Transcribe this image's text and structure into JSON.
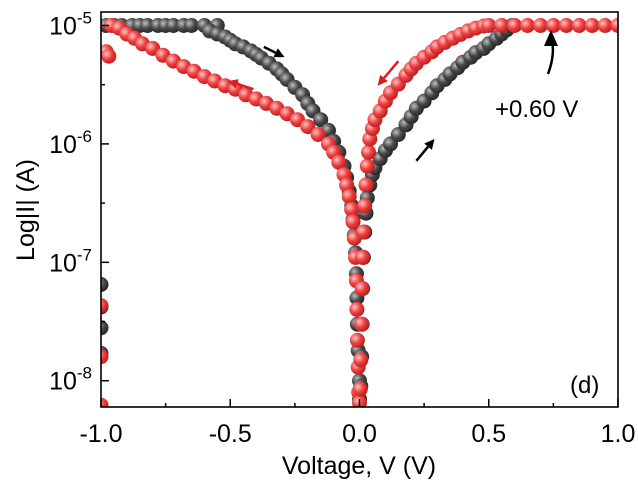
{
  "chart_data": {
    "type": "scatter",
    "title": "",
    "xlabel": "Voltage, V (V)",
    "ylabel": "Log|I| (A)",
    "xscale": "linear",
    "yscale": "log",
    "xlim": [
      -1.0,
      1.0
    ],
    "ylim": [
      6e-09,
      1.3e-05
    ],
    "x_ticks": [
      -1.0,
      -0.5,
      0.0,
      0.5,
      1.0
    ],
    "x_tick_labels": [
      "-1.0",
      "-0.5",
      "0.0",
      "0.5",
      "1.0"
    ],
    "y_ticks": [
      1e-08,
      1e-07,
      1e-06,
      1e-05
    ],
    "y_tick_labels": [
      {
        "base": "10",
        "exp": "-8"
      },
      {
        "base": "10",
        "exp": "-7"
      },
      {
        "base": "10",
        "exp": "-6"
      },
      {
        "base": "10",
        "exp": "-5"
      }
    ],
    "grid": false,
    "legend": "none",
    "panel_label": "(d)",
    "annotations": [
      {
        "text": "+0.60 V",
        "x": 0.6,
        "y": 1e-05,
        "color": "#000000"
      }
    ],
    "arrows": [
      {
        "color": "#000000",
        "from": [
          -0.37,
          6.6e-06
        ],
        "to": [
          -0.29,
          5.4e-06
        ]
      },
      {
        "color": "#d92020",
        "from": [
          -0.41,
          2.9e-06
        ],
        "to": [
          -0.51,
          3.4e-06
        ]
      },
      {
        "color": "#d92020",
        "from": [
          0.15,
          5e-06
        ],
        "to": [
          0.07,
          3.1e-06
        ]
      },
      {
        "color": "#000000",
        "from": [
          0.22,
          7.2e-07
        ],
        "to": [
          0.29,
          1.1e-06
        ]
      }
    ],
    "series": [
      {
        "color": "#4a4a4a",
        "marker": "sphere",
        "points": [
          [
            -1.0,
            6.5e-08
          ],
          [
            -1.0,
            4.2e-08
          ],
          [
            -1.0,
            2.8e-08
          ],
          [
            -1.0,
            1.7e-08
          ],
          [
            -0.98,
            1e-05
          ],
          [
            -0.95,
            1e-05
          ],
          [
            -0.92,
            1e-05
          ],
          [
            -0.88,
            1e-05
          ],
          [
            -0.85,
            1e-05
          ],
          [
            -0.82,
            1e-05
          ],
          [
            -0.78,
            1e-05
          ],
          [
            -0.75,
            1e-05
          ],
          [
            -0.72,
            1e-05
          ],
          [
            -0.68,
            1e-05
          ],
          [
            -0.65,
            1e-05
          ],
          [
            -0.6,
            1e-05
          ],
          [
            -0.55,
            1e-05
          ],
          [
            -0.58,
            9e-06
          ],
          [
            -0.55,
            8.5e-06
          ],
          [
            -0.52,
            8e-06
          ],
          [
            -0.5,
            7.5e-06
          ],
          [
            -0.48,
            7e-06
          ],
          [
            -0.45,
            6.6e-06
          ],
          [
            -0.42,
            6.1e-06
          ],
          [
            -0.4,
            5.7e-06
          ],
          [
            -0.38,
            5.3e-06
          ],
          [
            -0.35,
            4.8e-06
          ],
          [
            -0.32,
            4.3e-06
          ],
          [
            -0.3,
            3.9e-06
          ],
          [
            -0.28,
            3.5e-06
          ],
          [
            -0.25,
            3e-06
          ],
          [
            -0.22,
            2.6e-06
          ],
          [
            -0.2,
            2.2e-06
          ],
          [
            -0.18,
            1.9e-06
          ],
          [
            -0.15,
            1.6e-06
          ],
          [
            -0.12,
            1.3e-06
          ],
          [
            -0.1,
            1.05e-06
          ],
          [
            -0.08,
            8.5e-07
          ],
          [
            -0.06,
            6.5e-07
          ],
          [
            -0.05,
            5.2e-07
          ],
          [
            -0.04,
            4e-07
          ],
          [
            -0.03,
            3e-07
          ],
          [
            -0.025,
            2.3e-07
          ],
          [
            -0.02,
            1.7e-07
          ],
          [
            -0.015,
            1.2e-07
          ],
          [
            -0.012,
            8e-08
          ],
          [
            -0.01,
            5e-08
          ],
          [
            -0.008,
            3e-08
          ],
          [
            -0.005,
            1.8e-08
          ],
          [
            0.0,
            1e-08
          ],
          [
            0.0,
            7e-09
          ],
          [
            0.005,
            9e-09
          ],
          [
            0.008,
            1.6e-08
          ],
          [
            0.01,
            3e-08
          ],
          [
            0.012,
            6e-08
          ],
          [
            0.015,
            1.1e-07
          ],
          [
            0.02,
            1.8e-07
          ],
          [
            0.025,
            2.6e-07
          ],
          [
            0.03,
            3.5e-07
          ],
          [
            0.04,
            4.5e-07
          ],
          [
            0.05,
            5.5e-07
          ],
          [
            0.06,
            6.3e-07
          ],
          [
            0.08,
            7.5e-07
          ],
          [
            0.1,
            8.8e-07
          ],
          [
            0.12,
            1e-06
          ],
          [
            0.15,
            1.2e-06
          ],
          [
            0.18,
            1.45e-06
          ],
          [
            0.2,
            1.7e-06
          ],
          [
            0.22,
            2e-06
          ],
          [
            0.25,
            2.3e-06
          ],
          [
            0.28,
            2.7e-06
          ],
          [
            0.3,
            3.1e-06
          ],
          [
            0.33,
            3.5e-06
          ],
          [
            0.35,
            3.9e-06
          ],
          [
            0.38,
            4.4e-06
          ],
          [
            0.4,
            4.9e-06
          ],
          [
            0.43,
            5.4e-06
          ],
          [
            0.45,
            5.9e-06
          ],
          [
            0.48,
            6.4e-06
          ],
          [
            0.5,
            7e-06
          ],
          [
            0.53,
            7.8e-06
          ],
          [
            0.55,
            8.5e-06
          ],
          [
            0.57,
            9.2e-06
          ],
          [
            0.59,
            1e-05
          ]
        ]
      },
      {
        "color": "#ee4040",
        "marker": "sphere",
        "points": [
          [
            -1.0,
            4.3e-08
          ],
          [
            -1.0,
            1.6e-08
          ],
          [
            -1.0,
            6.2e-09
          ],
          [
            -0.98,
            6e-06
          ],
          [
            -0.97,
            5.5e-06
          ],
          [
            -0.96,
            1e-05
          ],
          [
            -0.93,
            9.5e-06
          ],
          [
            -0.9,
            8.5e-06
          ],
          [
            -0.87,
            7.8e-06
          ],
          [
            -0.84,
            7e-06
          ],
          [
            -0.8,
            6.4e-06
          ],
          [
            -0.76,
            5.6e-06
          ],
          [
            -0.72,
            5e-06
          ],
          [
            -0.68,
            4.5e-06
          ],
          [
            -0.64,
            4.1e-06
          ],
          [
            -0.6,
            3.7e-06
          ],
          [
            -0.56,
            3.4e-06
          ],
          [
            -0.52,
            3.1e-06
          ],
          [
            -0.48,
            2.9e-06
          ],
          [
            -0.44,
            2.6e-06
          ],
          [
            -0.4,
            2.4e-06
          ],
          [
            -0.36,
            2.2e-06
          ],
          [
            -0.32,
            2e-06
          ],
          [
            -0.28,
            1.8e-06
          ],
          [
            -0.24,
            1.6e-06
          ],
          [
            -0.2,
            1.4e-06
          ],
          [
            -0.16,
            1.2e-06
          ],
          [
            -0.12,
            1e-06
          ],
          [
            -0.1,
            8.5e-07
          ],
          [
            -0.08,
            7e-07
          ],
          [
            -0.06,
            5.5e-07
          ],
          [
            -0.05,
            4.5e-07
          ],
          [
            -0.04,
            3.6e-07
          ],
          [
            -0.03,
            2.8e-07
          ],
          [
            -0.025,
            2.2e-07
          ],
          [
            -0.02,
            1.6e-07
          ],
          [
            -0.015,
            1.1e-07
          ],
          [
            -0.012,
            7e-08
          ],
          [
            -0.01,
            4e-08
          ],
          [
            -0.008,
            2.2e-08
          ],
          [
            -0.005,
            1.3e-08
          ],
          [
            -0.003,
            8e-09
          ],
          [
            0.0,
            6.5e-09
          ],
          [
            0.003,
            8.5e-09
          ],
          [
            0.005,
            1.5e-08
          ],
          [
            0.008,
            3e-08
          ],
          [
            0.01,
            6e-08
          ],
          [
            0.012,
            1.1e-07
          ],
          [
            0.015,
            1.8e-07
          ],
          [
            0.02,
            3e-07
          ],
          [
            0.025,
            4.5e-07
          ],
          [
            0.03,
            6.5e-07
          ],
          [
            0.035,
            8.5e-07
          ],
          [
            0.04,
            1.1e-06
          ],
          [
            0.05,
            1.35e-06
          ],
          [
            0.06,
            1.6e-06
          ],
          [
            0.08,
            1.9e-06
          ],
          [
            0.1,
            2.3e-06
          ],
          [
            0.12,
            2.7e-06
          ],
          [
            0.15,
            3.2e-06
          ],
          [
            0.18,
            3.8e-06
          ],
          [
            0.2,
            4.3e-06
          ],
          [
            0.22,
            4.8e-06
          ],
          [
            0.25,
            5.4e-06
          ],
          [
            0.28,
            6e-06
          ],
          [
            0.3,
            6.6e-06
          ],
          [
            0.33,
            7.2e-06
          ],
          [
            0.36,
            7.8e-06
          ],
          [
            0.39,
            8.4e-06
          ],
          [
            0.42,
            9e-06
          ],
          [
            0.45,
            9.5e-06
          ],
          [
            0.48,
            9.9e-06
          ],
          [
            0.5,
            1e-05
          ],
          [
            0.55,
            1e-05
          ],
          [
            0.6,
            1e-05
          ],
          [
            0.65,
            1e-05
          ],
          [
            0.7,
            1e-05
          ],
          [
            0.75,
            1e-05
          ],
          [
            0.8,
            1e-05
          ],
          [
            0.85,
            1e-05
          ],
          [
            0.9,
            1e-05
          ],
          [
            0.95,
            1e-05
          ],
          [
            1.0,
            1e-05
          ]
        ]
      }
    ]
  }
}
